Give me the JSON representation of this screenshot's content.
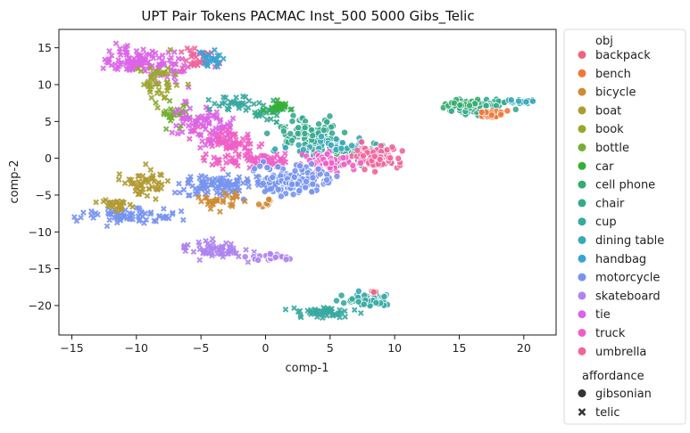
{
  "chart_data": {
    "type": "scatter",
    "title": "UPT Pair Tokens PACMAC Inst_500 5000 Gibs_Telic",
    "xlabel": "comp-1",
    "ylabel": "comp-2",
    "xlim": [
      -16,
      22.5
    ],
    "ylim": [
      -24,
      17.5
    ],
    "xticks": [
      -15,
      -10,
      -5,
      0,
      5,
      10,
      15,
      20
    ],
    "yticks": [
      15,
      10,
      5,
      0,
      -5,
      -10,
      -15,
      -20
    ],
    "grid": false,
    "legend_placement": "outside-right",
    "legend": {
      "hue_title": "obj",
      "hue_entries": [
        {
          "name": "backpack",
          "color": "#f0657c"
        },
        {
          "name": "bench",
          "color": "#f07838"
        },
        {
          "name": "bicycle",
          "color": "#cf8a32"
        },
        {
          "name": "boat",
          "color": "#b19a32"
        },
        {
          "name": "book",
          "color": "#9ba631"
        },
        {
          "name": "bottle",
          "color": "#75ae32"
        },
        {
          "name": "car",
          "color": "#34b036"
        },
        {
          "name": "cell phone",
          "color": "#35ad6f"
        },
        {
          "name": "chair",
          "color": "#36aa8d"
        },
        {
          "name": "cup",
          "color": "#37a9a1"
        },
        {
          "name": "dining table",
          "color": "#39a8b7"
        },
        {
          "name": "handbag",
          "color": "#3ba3d3"
        },
        {
          "name": "motorcycle",
          "color": "#7794ef"
        },
        {
          "name": "skateboard",
          "color": "#ae84ef"
        },
        {
          "name": "tie",
          "color": "#dc64e8"
        },
        {
          "name": "truck",
          "color": "#f05fc6"
        },
        {
          "name": "umbrella",
          "color": "#f0659c"
        }
      ],
      "style_title": "affordance",
      "style_entries": [
        {
          "name": "gibsonian",
          "marker": "circle"
        },
        {
          "name": "telic",
          "marker": "x"
        }
      ]
    },
    "clusters": [
      {
        "obj": "tie",
        "affordance": "telic",
        "center": [
          -10.5,
          13.2
        ],
        "spread": [
          2.2,
          1.6
        ],
        "n": 90
      },
      {
        "obj": "tie",
        "affordance": "telic",
        "center": [
          -7.5,
          12.5
        ],
        "spread": [
          1.5,
          2.0
        ],
        "n": 40
      },
      {
        "obj": "umbrella",
        "affordance": "telic",
        "center": [
          -5.0,
          13.5
        ],
        "spread": [
          1.4,
          1.4
        ],
        "n": 35
      },
      {
        "obj": "handbag",
        "affordance": "telic",
        "center": [
          -4.3,
          13.6
        ],
        "spread": [
          0.9,
          1.2
        ],
        "n": 25
      },
      {
        "obj": "book",
        "affordance": "telic",
        "center": [
          -8.0,
          10.5
        ],
        "spread": [
          1.6,
          2.5
        ],
        "n": 45
      },
      {
        "obj": "bottle",
        "affordance": "telic",
        "center": [
          -7.2,
          6.0
        ],
        "spread": [
          1.2,
          1.6
        ],
        "n": 30
      },
      {
        "obj": "tie",
        "affordance": "telic",
        "center": [
          -4.8,
          4.8
        ],
        "spread": [
          2.2,
          2.5
        ],
        "n": 80
      },
      {
        "obj": "truck",
        "affordance": "telic",
        "center": [
          -3.0,
          2.5
        ],
        "spread": [
          2.0,
          1.5
        ],
        "n": 60
      },
      {
        "obj": "cup",
        "affordance": "telic",
        "center": [
          -2.5,
          7.5
        ],
        "spread": [
          1.8,
          1.0
        ],
        "n": 30
      },
      {
        "obj": "chair",
        "affordance": "telic",
        "center": [
          0.5,
          6.0
        ],
        "spread": [
          1.5,
          1.5
        ],
        "n": 30
      },
      {
        "obj": "car",
        "affordance": "telic",
        "center": [
          1.0,
          7.0
        ],
        "spread": [
          0.8,
          0.6
        ],
        "n": 20
      },
      {
        "obj": "chair",
        "affordance": "gibsonian",
        "center": [
          3.5,
          3.0
        ],
        "spread": [
          2.4,
          2.0
        ],
        "n": 120
      },
      {
        "obj": "cell phone",
        "affordance": "gibsonian",
        "center": [
          7.5,
          0.5
        ],
        "spread": [
          2.0,
          1.2
        ],
        "n": 60
      },
      {
        "obj": "dining table",
        "affordance": "gibsonian",
        "center": [
          5.0,
          1.5
        ],
        "spread": [
          3.0,
          1.2
        ],
        "n": 50
      },
      {
        "obj": "umbrella",
        "affordance": "gibsonian",
        "center": [
          8.5,
          0.2
        ],
        "spread": [
          1.6,
          1.3
        ],
        "n": 90
      },
      {
        "obj": "truck",
        "affordance": "gibsonian",
        "center": [
          5.0,
          -0.5
        ],
        "spread": [
          2.0,
          1.0
        ],
        "n": 50
      },
      {
        "obj": "truck",
        "affordance": "telic",
        "center": [
          -1.0,
          -0.3
        ],
        "spread": [
          3.0,
          0.9
        ],
        "n": 70
      },
      {
        "obj": "motorcycle",
        "affordance": "gibsonian",
        "center": [
          2.0,
          -3.0
        ],
        "spread": [
          2.8,
          1.6
        ],
        "n": 160
      },
      {
        "obj": "motorcycle",
        "affordance": "telic",
        "center": [
          -3.5,
          -3.8
        ],
        "spread": [
          2.8,
          1.4
        ],
        "n": 90
      },
      {
        "obj": "motorcycle",
        "affordance": "telic",
        "center": [
          -10.5,
          -7.8
        ],
        "spread": [
          3.4,
          0.9
        ],
        "n": 70
      },
      {
        "obj": "boat",
        "affordance": "telic",
        "center": [
          -9.5,
          -3.5
        ],
        "spread": [
          1.6,
          1.8
        ],
        "n": 50
      },
      {
        "obj": "boat",
        "affordance": "telic",
        "center": [
          -11.5,
          -6.2
        ],
        "spread": [
          1.4,
          0.9
        ],
        "n": 25
      },
      {
        "obj": "bicycle",
        "affordance": "telic",
        "center": [
          -3.5,
          -6.0
        ],
        "spread": [
          1.5,
          1.0
        ],
        "n": 30
      },
      {
        "obj": "bicycle",
        "affordance": "gibsonian",
        "center": [
          0.0,
          -6.0
        ],
        "spread": [
          0.6,
          0.5
        ],
        "n": 10
      },
      {
        "obj": "skateboard",
        "affordance": "telic",
        "center": [
          -4.0,
          -12.5
        ],
        "spread": [
          2.4,
          1.0
        ],
        "n": 60
      },
      {
        "obj": "skateboard",
        "affordance": "gibsonian",
        "center": [
          0.5,
          -13.4
        ],
        "spread": [
          1.3,
          0.4
        ],
        "n": 25
      },
      {
        "obj": "chair",
        "affordance": "gibsonian",
        "center": [
          16.5,
          7.0
        ],
        "spread": [
          1.8,
          0.8
        ],
        "n": 90
      },
      {
        "obj": "bench",
        "affordance": "gibsonian",
        "center": [
          17.6,
          6.0
        ],
        "spread": [
          0.9,
          0.4
        ],
        "n": 30
      },
      {
        "obj": "cell phone",
        "affordance": "gibsonian",
        "center": [
          15.5,
          7.5
        ],
        "spread": [
          1.2,
          0.6
        ],
        "n": 30
      },
      {
        "obj": "dining table",
        "affordance": "gibsonian",
        "center": [
          20.0,
          7.8
        ],
        "spread": [
          1.0,
          0.3
        ],
        "n": 20
      },
      {
        "obj": "dining table",
        "affordance": "gibsonian",
        "center": [
          8.3,
          -19.0
        ],
        "spread": [
          1.2,
          0.7
        ],
        "n": 40
      },
      {
        "obj": "cup",
        "affordance": "telic",
        "center": [
          4.5,
          -21.0
        ],
        "spread": [
          2.5,
          0.6
        ],
        "n": 50
      },
      {
        "obj": "cup",
        "affordance": "gibsonian",
        "center": [
          7.5,
          -19.5
        ],
        "spread": [
          1.8,
          0.6
        ],
        "n": 30
      },
      {
        "obj": "backpack",
        "affordance": "gibsonian",
        "center": [
          8.3,
          -18.2
        ],
        "spread": [
          0.3,
          0.3
        ],
        "n": 4
      }
    ]
  }
}
